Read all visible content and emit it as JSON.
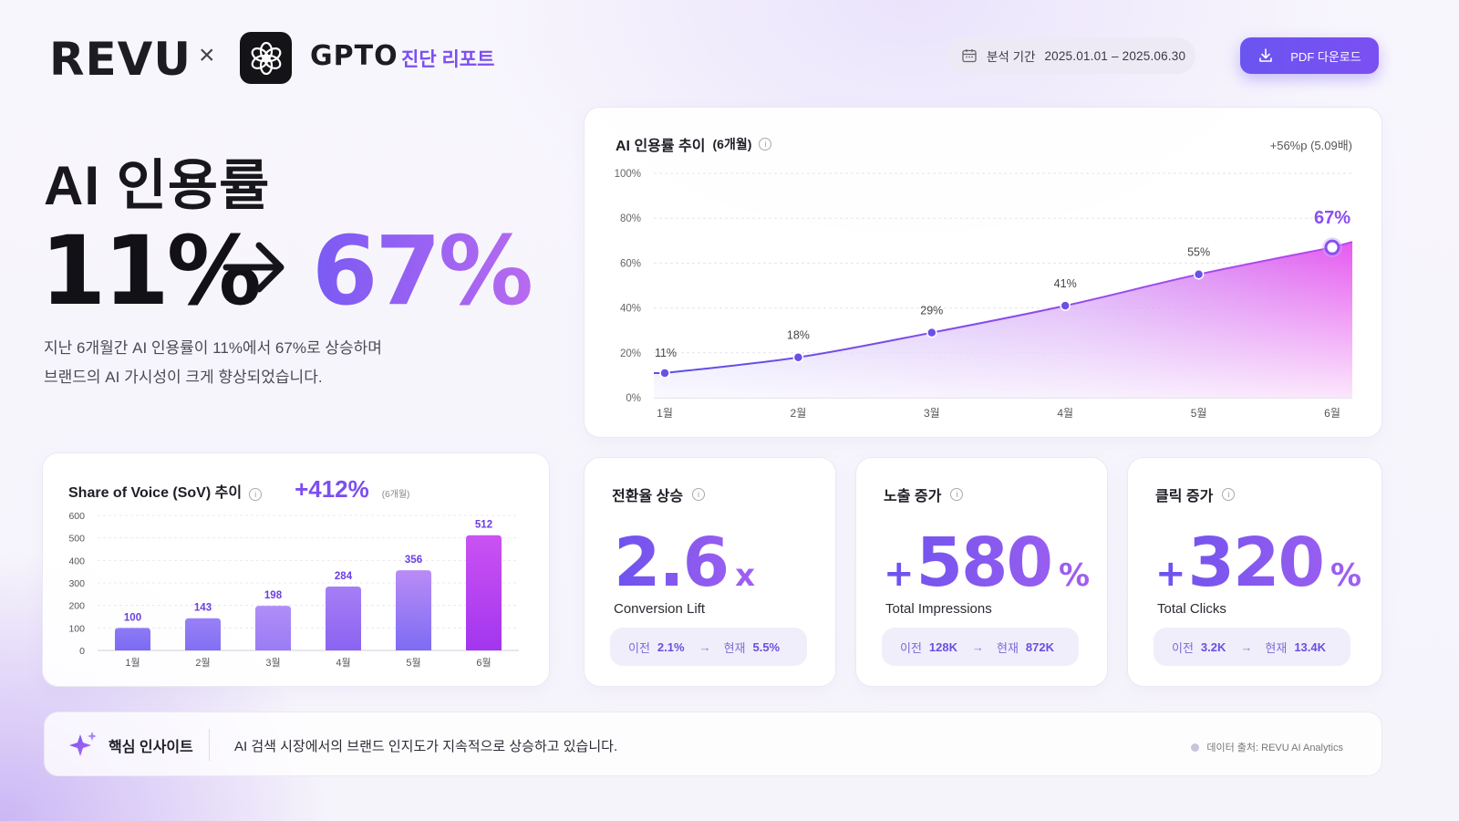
{
  "header": {
    "brand": "REVU",
    "times": "×",
    "partner": "GPTO",
    "report_label": "진단 리포트",
    "period_label": "분석 기간",
    "period_value": "2025.01.01 – 2025.06.30",
    "pdf_button": "PDF 다운로드"
  },
  "hero": {
    "title": "AI 인용률",
    "from": "11%",
    "to": "67%",
    "desc_line1": "지난 6개월간 AI 인용률이 11%에서 67%로 상승하며",
    "desc_line2": "브랜드의 AI 가시성이 크게 향상되었습니다."
  },
  "trend": {
    "title": "AI 인용률 추이",
    "title_sub": "(6개월)",
    "delta": "+56%p (5.09배)"
  },
  "sov": {
    "title": "Share of Voice (SoV) 추이",
    "pct": "+412%",
    "pct_sub": "(6개월)"
  },
  "kpis": [
    {
      "title": "전환율 상승",
      "plus": "",
      "value": "2.6",
      "unit": "x",
      "label": "Conversion Lift",
      "prev_k": "이전",
      "prev_v": "2.1%",
      "cur_k": "현재",
      "cur_v": "5.5%"
    },
    {
      "title": "노출 증가",
      "plus": "+",
      "value": "580",
      "unit": "%",
      "label": "Total Impressions",
      "prev_k": "이전",
      "prev_v": "128K",
      "cur_k": "현재",
      "cur_v": "872K"
    },
    {
      "title": "클릭 증가",
      "plus": "+",
      "value": "320",
      "unit": "%",
      "label": "Total Clicks",
      "prev_k": "이전",
      "prev_v": "3.2K",
      "cur_k": "현재",
      "cur_v": "13.4K"
    }
  ],
  "insight": {
    "label": "핵심 인사이트",
    "text": "AI 검색 시장에서의 브랜드 인지도가 지속적으로 상승하고 있습니다.",
    "source": "데이터 출처: REVU AI Analytics"
  },
  "colors": {
    "accent": "#7c4ff0",
    "accent_light": "#b46cf2",
    "magenta": "#d94df0"
  },
  "chart_data": [
    {
      "type": "area",
      "title": "AI 인용률 추이 (6개월)",
      "categories": [
        "1월",
        "2월",
        "3월",
        "4월",
        "5월",
        "6월"
      ],
      "values": [
        11,
        18,
        29,
        41,
        55,
        67
      ],
      "labels": [
        "11%",
        "18%",
        "29%",
        "41%",
        "55%",
        "67%"
      ],
      "yticks": [
        "0%",
        "20%",
        "40%",
        "60%",
        "80%",
        "100%"
      ],
      "ylim": [
        0,
        100
      ],
      "grid": true
    },
    {
      "type": "bar",
      "title": "Share of Voice (SoV) 추이",
      "categories": [
        "1월",
        "2월",
        "3월",
        "4월",
        "5월",
        "6월"
      ],
      "values": [
        100,
        143,
        198,
        284,
        356,
        512
      ],
      "yticks": [
        "0",
        "100",
        "200",
        "300",
        "400",
        "500",
        "600"
      ],
      "ylim": [
        0,
        600
      ],
      "grid": true
    }
  ]
}
